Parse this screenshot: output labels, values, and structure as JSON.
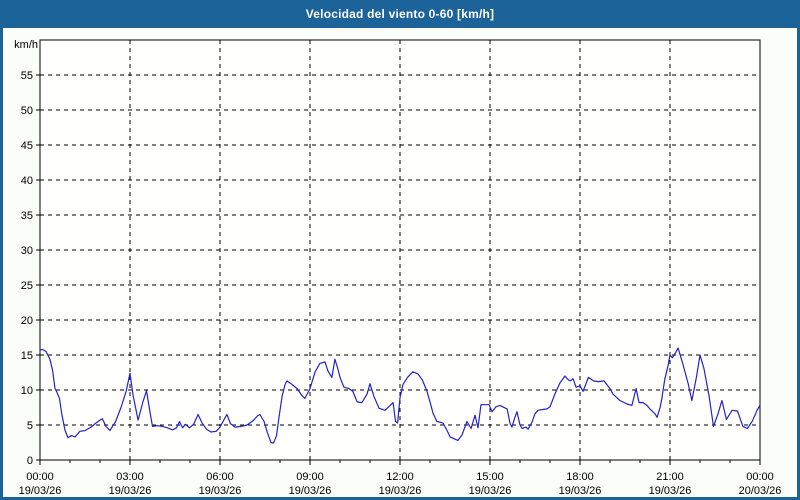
{
  "window": {
    "title": "Velocidad del viento 0-60 [km/h]"
  },
  "colors": {
    "titlebar_bg": "#1b6398",
    "titlebar_text": "#ffffff",
    "frame_border": "#1b6398",
    "page_bg": "#fbfdf9",
    "plot_bg": "#fffffe",
    "axis": "#000000",
    "grid": "#000000",
    "line": "#2323c8"
  },
  "chart_data": {
    "type": "line",
    "title": "Velocidad del viento 0-60 [km/h]",
    "ylabel": "km/h",
    "ylim": [
      0,
      60
    ],
    "yticks": [
      0,
      5,
      10,
      15,
      20,
      25,
      30,
      35,
      40,
      45,
      50,
      55
    ],
    "xlim_hours": [
      0,
      24
    ],
    "minor_x_tick_hours": 1,
    "grid_style": "dashed",
    "legend": "none",
    "xticks": [
      {
        "hour": 0,
        "time": "00:00",
        "date": "19/03/26"
      },
      {
        "hour": 3,
        "time": "03:00",
        "date": "19/03/26"
      },
      {
        "hour": 6,
        "time": "06:00",
        "date": "19/03/26"
      },
      {
        "hour": 9,
        "time": "09:00",
        "date": "19/03/26"
      },
      {
        "hour": 12,
        "time": "12:00",
        "date": "19/03/26"
      },
      {
        "hour": 15,
        "time": "15:00",
        "date": "19/03/26"
      },
      {
        "hour": 18,
        "time": "18:00",
        "date": "19/03/26"
      },
      {
        "hour": 21,
        "time": "21:00",
        "date": "19/03/26"
      },
      {
        "hour": 24,
        "time": "00:00",
        "date": "20/03/26"
      }
    ],
    "series": [
      {
        "name": "wind-speed-kmh",
        "points": [
          [
            0,
            15.7
          ],
          [
            0.08,
            15.8
          ],
          [
            0.2,
            15.5
          ],
          [
            0.33,
            14.4
          ],
          [
            0.42,
            12.8
          ],
          [
            0.5,
            10.2
          ],
          [
            0.55,
            9.8
          ],
          [
            0.65,
            8.8
          ],
          [
            0.72,
            6.7
          ],
          [
            0.83,
            4.3
          ],
          [
            0.93,
            3.2
          ],
          [
            1.05,
            3.5
          ],
          [
            1.17,
            3.3
          ],
          [
            1.33,
            4.1
          ],
          [
            1.5,
            4.2
          ],
          [
            1.7,
            4.7
          ],
          [
            1.87,
            5.3
          ],
          [
            2,
            5.7
          ],
          [
            2.08,
            5.9
          ],
          [
            2.2,
            4.8
          ],
          [
            2.33,
            4.2
          ],
          [
            2.52,
            5.5
          ],
          [
            2.7,
            7.5
          ],
          [
            2.87,
            9.8
          ],
          [
            3,
            12.4
          ],
          [
            3.1,
            9.3
          ],
          [
            3.27,
            5.7
          ],
          [
            3.43,
            8.3
          ],
          [
            3.55,
            9.9
          ],
          [
            3.68,
            6.5
          ],
          [
            3.75,
            4.8
          ],
          [
            3.92,
            4.9
          ],
          [
            4.08,
            4.8
          ],
          [
            4.25,
            4.6
          ],
          [
            4.42,
            4.3
          ],
          [
            4.55,
            4.6
          ],
          [
            4.65,
            5.5
          ],
          [
            4.75,
            4.6
          ],
          [
            4.85,
            5.1
          ],
          [
            4.98,
            4.6
          ],
          [
            5.12,
            5.1
          ],
          [
            5.27,
            6.5
          ],
          [
            5.4,
            5.3
          ],
          [
            5.55,
            4.4
          ],
          [
            5.7,
            4
          ],
          [
            5.87,
            4.1
          ],
          [
            6,
            4.7
          ],
          [
            6.15,
            5.9
          ],
          [
            6.23,
            6.5
          ],
          [
            6.35,
            5.2
          ],
          [
            6.5,
            4.7
          ],
          [
            6.7,
            4.8
          ],
          [
            6.9,
            5
          ],
          [
            7.1,
            5.6
          ],
          [
            7.25,
            6.3
          ],
          [
            7.33,
            6.5
          ],
          [
            7.47,
            5.5
          ],
          [
            7.58,
            3.9
          ],
          [
            7.7,
            2.5
          ],
          [
            7.78,
            2.4
          ],
          [
            7.88,
            3.4
          ],
          [
            7.97,
            6.2
          ],
          [
            8.07,
            9.1
          ],
          [
            8.17,
            10.8
          ],
          [
            8.23,
            11.3
          ],
          [
            8.4,
            10.8
          ],
          [
            8.57,
            10.2
          ],
          [
            8.73,
            9.2
          ],
          [
            8.83,
            8.8
          ],
          [
            9,
            10.2
          ],
          [
            9.17,
            12.6
          ],
          [
            9.33,
            13.8
          ],
          [
            9.5,
            14
          ],
          [
            9.6,
            12.7
          ],
          [
            9.73,
            11.8
          ],
          [
            9.83,
            14.4
          ],
          [
            9.93,
            13
          ],
          [
            10,
            11.8
          ],
          [
            10.13,
            10.4
          ],
          [
            10.3,
            10.2
          ],
          [
            10.43,
            9.8
          ],
          [
            10.57,
            8.3
          ],
          [
            10.73,
            8.2
          ],
          [
            10.9,
            9.4
          ],
          [
            11,
            10.9
          ],
          [
            11.13,
            9.1
          ],
          [
            11.3,
            7.4
          ],
          [
            11.5,
            7.1
          ],
          [
            11.67,
            7.8
          ],
          [
            11.77,
            8.2
          ],
          [
            11.85,
            5.5
          ],
          [
            11.92,
            5.3
          ],
          [
            12,
            8.9
          ],
          [
            12.1,
            10.8
          ],
          [
            12.25,
            11.8
          ],
          [
            12.43,
            12.6
          ],
          [
            12.6,
            12.3
          ],
          [
            12.75,
            11.4
          ],
          [
            12.9,
            9.8
          ],
          [
            13,
            8.3
          ],
          [
            13.1,
            6.7
          ],
          [
            13.23,
            5.5
          ],
          [
            13.43,
            5.3
          ],
          [
            13.57,
            4.2
          ],
          [
            13.67,
            3.3
          ],
          [
            13.93,
            2.8
          ],
          [
            14.07,
            3.6
          ],
          [
            14.23,
            5.5
          ],
          [
            14.37,
            4.5
          ],
          [
            14.5,
            6.4
          ],
          [
            14.6,
            4.6
          ],
          [
            14.7,
            7.9
          ],
          [
            14.97,
            7.9
          ],
          [
            15.07,
            6.9
          ],
          [
            15.2,
            7.6
          ],
          [
            15.33,
            7.8
          ],
          [
            15.57,
            7.3
          ],
          [
            15.67,
            5.2
          ],
          [
            15.73,
            4.7
          ],
          [
            15.83,
            6.1
          ],
          [
            15.9,
            6.9
          ],
          [
            16,
            5
          ],
          [
            16.07,
            4.5
          ],
          [
            16.2,
            4.7
          ],
          [
            16.27,
            4.4
          ],
          [
            16.4,
            5.4
          ],
          [
            16.5,
            6.6
          ],
          [
            16.6,
            7.1
          ],
          [
            16.73,
            7.2
          ],
          [
            16.9,
            7.3
          ],
          [
            17,
            7.6
          ],
          [
            17.17,
            9.5
          ],
          [
            17.33,
            11
          ],
          [
            17.5,
            12
          ],
          [
            17.6,
            11.5
          ],
          [
            17.67,
            11.3
          ],
          [
            17.77,
            11.6
          ],
          [
            17.87,
            10.4
          ],
          [
            18,
            10.6
          ],
          [
            18.1,
            9.8
          ],
          [
            18.28,
            11.8
          ],
          [
            18.45,
            11.3
          ],
          [
            18.6,
            11.2
          ],
          [
            18.8,
            11.3
          ],
          [
            19,
            10.2
          ],
          [
            19.1,
            9.4
          ],
          [
            19.23,
            8.9
          ],
          [
            19.33,
            8.5
          ],
          [
            19.57,
            8
          ],
          [
            19.73,
            7.8
          ],
          [
            19.87,
            10.2
          ],
          [
            19.97,
            8.2
          ],
          [
            20.1,
            8.2
          ],
          [
            20.23,
            7.8
          ],
          [
            20.33,
            7.3
          ],
          [
            20.5,
            6.6
          ],
          [
            20.57,
            6.1
          ],
          [
            20.67,
            7.5
          ],
          [
            20.73,
            8.8
          ],
          [
            20.77,
            10
          ],
          [
            20.83,
            11.6
          ],
          [
            20.93,
            13.4
          ],
          [
            21,
            15
          ],
          [
            21.08,
            14.6
          ],
          [
            21.18,
            15.3
          ],
          [
            21.27,
            16
          ],
          [
            21.43,
            13.7
          ],
          [
            21.6,
            11
          ],
          [
            21.73,
            8.5
          ],
          [
            21.88,
            11.8
          ],
          [
            22,
            15
          ],
          [
            22.13,
            13.1
          ],
          [
            22.3,
            9.2
          ],
          [
            22.45,
            4.8
          ],
          [
            22.6,
            6.6
          ],
          [
            22.73,
            8.5
          ],
          [
            22.88,
            5.8
          ],
          [
            23.07,
            7.1
          ],
          [
            23.25,
            7
          ],
          [
            23.43,
            4.8
          ],
          [
            23.58,
            4.5
          ],
          [
            23.75,
            5.6
          ],
          [
            23.9,
            7.1
          ],
          [
            24,
            7.8
          ]
        ]
      }
    ]
  }
}
